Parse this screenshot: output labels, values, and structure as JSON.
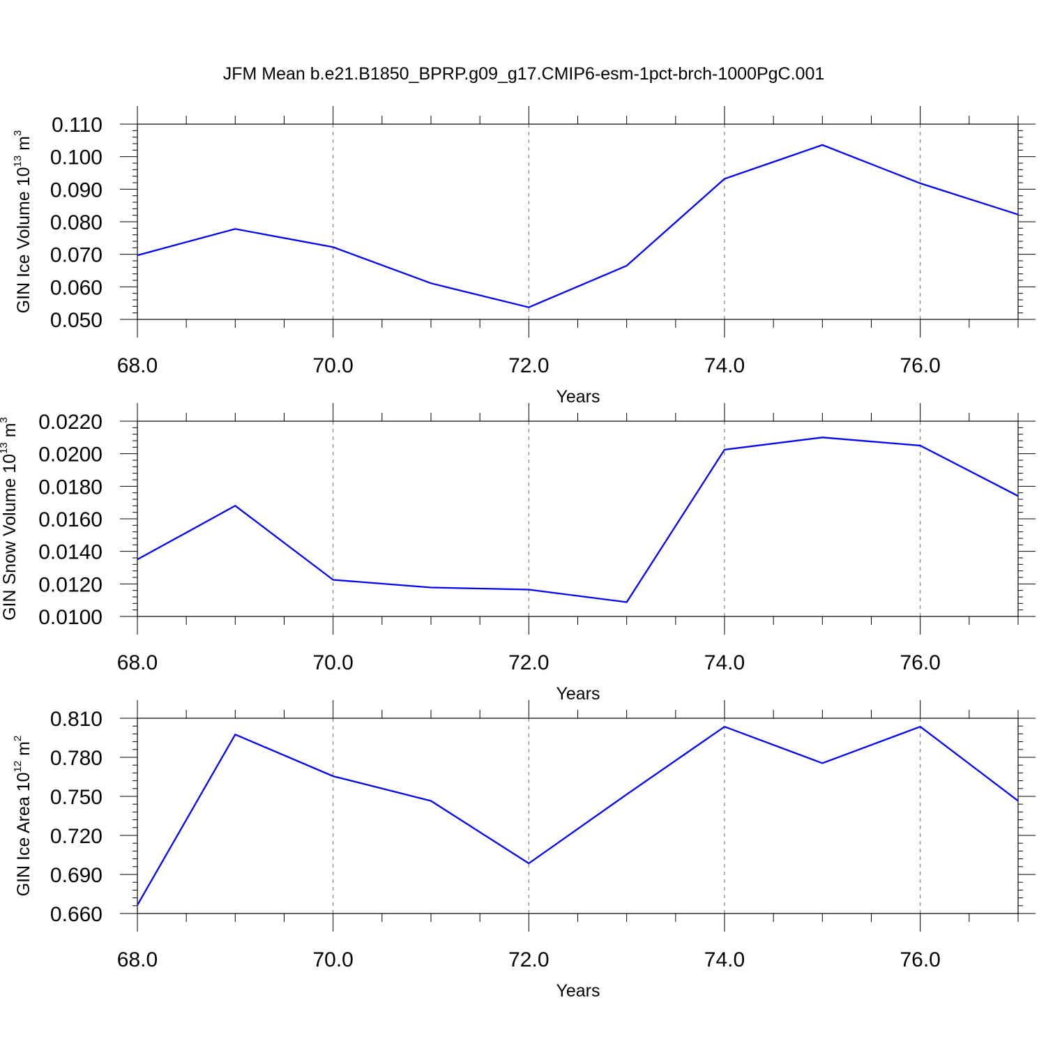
{
  "title": "JFM Mean b.e21.B1850_BPRP.g09_g17.CMIP6-esm-1pct-brch-1000PgC.001",
  "chart_data": [
    {
      "type": "line",
      "xlabel": "Years",
      "ylabel": {
        "base": "GIN Ice Volume 10",
        "exp": "13",
        "unit": " m",
        "unit_exp": "3"
      },
      "xlim": [
        68,
        77
      ],
      "ylim": [
        0.05,
        0.11
      ],
      "x_ticks": [
        68,
        70,
        72,
        74,
        76
      ],
      "x_tick_labels": [
        "68.0",
        "70.0",
        "72.0",
        "74.0",
        "76.0"
      ],
      "y_ticks": [
        0.05,
        0.06,
        0.07,
        0.08,
        0.09,
        0.1,
        0.11
      ],
      "y_tick_labels": [
        "0.050",
        "0.060",
        "0.070",
        "0.080",
        "0.090",
        "0.100",
        "0.110"
      ],
      "minor_x_step": 0.5,
      "minor_y_step": 0.002,
      "series_color": "#0000ff",
      "x": [
        68,
        69,
        70,
        71,
        72,
        73,
        74,
        75,
        76,
        77
      ],
      "values": [
        0.0697,
        0.0778,
        0.0722,
        0.0611,
        0.0537,
        0.0665,
        0.0932,
        0.1036,
        0.0918,
        0.0822
      ]
    },
    {
      "type": "line",
      "xlabel": "Years",
      "ylabel": {
        "base": "GIN Snow Volume 10",
        "exp": "13",
        "unit": " m",
        "unit_exp": "3"
      },
      "xlim": [
        68,
        77
      ],
      "ylim": [
        0.01,
        0.022
      ],
      "x_ticks": [
        68,
        70,
        72,
        74,
        76
      ],
      "x_tick_labels": [
        "68.0",
        "70.0",
        "72.0",
        "74.0",
        "76.0"
      ],
      "y_ticks": [
        0.01,
        0.012,
        0.014,
        0.016,
        0.018,
        0.02,
        0.022
      ],
      "y_tick_labels": [
        "0.0100",
        "0.0120",
        "0.0140",
        "0.0160",
        "0.0180",
        "0.0200",
        "0.0220"
      ],
      "minor_x_step": 0.5,
      "minor_y_step": 0.0004,
      "series_color": "#0000ff",
      "x": [
        68,
        69,
        70,
        71,
        72,
        73,
        74,
        75,
        76,
        77
      ],
      "values": [
        0.0135,
        0.0168,
        0.01225,
        0.01178,
        0.01165,
        0.01088,
        0.02025,
        0.021,
        0.0205,
        0.0174
      ]
    },
    {
      "type": "line",
      "xlabel": "Years",
      "ylabel": {
        "base": "GIN Ice Area 10",
        "exp": "12",
        "unit": " m",
        "unit_exp": "2"
      },
      "xlim": [
        68,
        77
      ],
      "ylim": [
        0.66,
        0.81
      ],
      "x_ticks": [
        68,
        70,
        72,
        74,
        76
      ],
      "x_tick_labels": [
        "68.0",
        "70.0",
        "72.0",
        "74.0",
        "76.0"
      ],
      "y_ticks": [
        0.66,
        0.69,
        0.72,
        0.75,
        0.78,
        0.81
      ],
      "y_tick_labels": [
        "0.660",
        "0.690",
        "0.720",
        "0.750",
        "0.780",
        "0.810"
      ],
      "minor_x_step": 0.5,
      "minor_y_step": 0.006,
      "series_color": "#0000ff",
      "x": [
        68,
        69,
        70,
        71,
        72,
        73,
        74,
        75,
        76,
        77
      ],
      "values": [
        0.6665,
        0.7975,
        0.7655,
        0.7465,
        0.6985,
        0.7515,
        0.8035,
        0.7755,
        0.8035,
        0.7465
      ]
    }
  ]
}
